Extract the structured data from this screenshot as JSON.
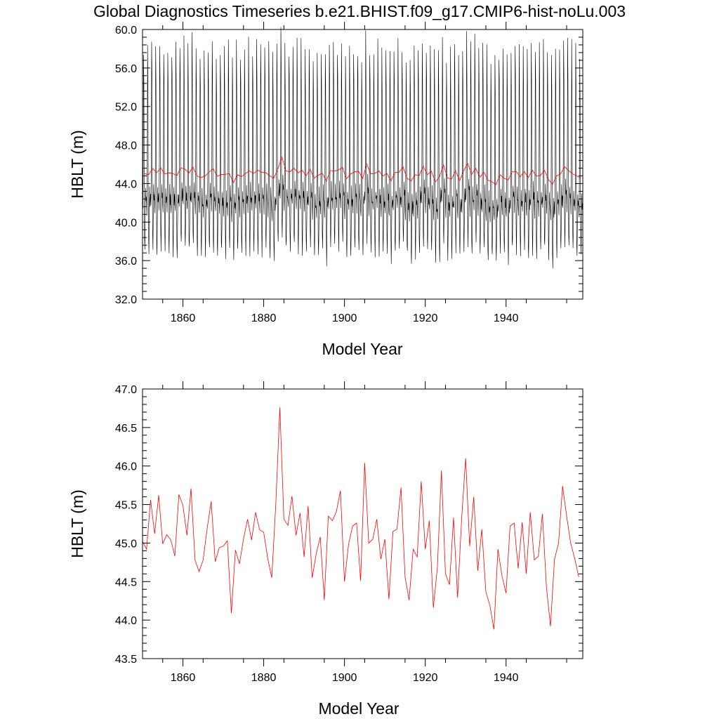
{
  "title": "Global Diagnostics Timeseries b.e21.BHIST.f09_g17.CMIP6-hist-noLu.003",
  "colors": {
    "monthly": "#000000",
    "annual": "#ff0000"
  },
  "chart_data": [
    {
      "type": "line",
      "xlabel": "Model Year",
      "ylabel": "HBLT (m)",
      "xlim": [
        1850,
        1959
      ],
      "ylim": [
        32.0,
        60.0
      ],
      "x_ticks": [
        1860,
        1880,
        1900,
        1920,
        1940
      ],
      "y_ticks": [
        "32.0",
        "36.0",
        "40.0",
        "44.0",
        "48.0",
        "52.0",
        "56.0",
        "60.0"
      ],
      "grid": false,
      "series": [
        {
          "color": "#000000",
          "resolution": "monthly",
          "annual_cycle": {
            "year_start": 1850,
            "year_end": 1959,
            "monthly_shape": [
              42.0,
              41.0,
              45.5,
              58.0,
              54.0,
              43.5,
              38.5,
              36.8,
              40.0,
              43.5,
              42.0,
              42.5
            ]
          }
        },
        {
          "color": "#ff0000",
          "resolution": "annual",
          "x": [
            1850,
            1851,
            1852,
            1853,
            1854,
            1855,
            1856,
            1857,
            1858,
            1859,
            1860,
            1861,
            1862,
            1863,
            1864,
            1865,
            1866,
            1867,
            1868,
            1869,
            1870,
            1871,
            1872,
            1873,
            1874,
            1875,
            1876,
            1877,
            1878,
            1879,
            1880,
            1881,
            1882,
            1883,
            1884,
            1885,
            1886,
            1887,
            1888,
            1889,
            1890,
            1891,
            1892,
            1893,
            1894,
            1895,
            1896,
            1897,
            1898,
            1899,
            1900,
            1901,
            1902,
            1903,
            1904,
            1905,
            1906,
            1907,
            1908,
            1909,
            1910,
            1911,
            1912,
            1913,
            1914,
            1915,
            1916,
            1917,
            1918,
            1919,
            1920,
            1921,
            1922,
            1923,
            1924,
            1925,
            1926,
            1927,
            1928,
            1929,
            1930,
            1931,
            1932,
            1933,
            1934,
            1935,
            1936,
            1937,
            1938,
            1939,
            1940,
            1941,
            1942,
            1943,
            1944,
            1945,
            1946,
            1947,
            1948,
            1949,
            1950,
            1951,
            1952,
            1953,
            1954,
            1955,
            1956,
            1957,
            1958
          ],
          "values": [
            45.02,
            44.92,
            45.56,
            45.12,
            45.62,
            44.99,
            45.11,
            45.04,
            44.83,
            45.63,
            45.49,
            45.1,
            45.71,
            44.78,
            44.63,
            44.78,
            45.19,
            45.54,
            44.76,
            44.94,
            44.96,
            45.03,
            44.09,
            44.91,
            44.73,
            45.05,
            45.31,
            45.04,
            45.4,
            45.17,
            45.14,
            44.8,
            44.55,
            45.51,
            46.76,
            45.31,
            45.23,
            45.61,
            45.1,
            45.39,
            44.82,
            45.48,
            44.55,
            44.86,
            45.08,
            44.26,
            45.35,
            45.29,
            45.41,
            45.68,
            44.5,
            44.98,
            45.22,
            45.26,
            44.51,
            46.04,
            45.0,
            45.05,
            45.31,
            44.79,
            45.05,
            44.27,
            45.15,
            45.18,
            45.72,
            44.56,
            44.26,
            44.92,
            44.82,
            45.8,
            44.92,
            45.29,
            44.16,
            44.68,
            45.94,
            44.6,
            44.46,
            45.33,
            44.29,
            45.31,
            46.1,
            44.96,
            45.6,
            44.64,
            45.18,
            44.37,
            44.19,
            43.88,
            44.92,
            44.57,
            44.35,
            45.22,
            45.26,
            44.67,
            45.27,
            44.6,
            45.4,
            44.78,
            44.83,
            45.38,
            44.43,
            43.92,
            44.79,
            45.0,
            45.74,
            45.35,
            45.0,
            44.8,
            44.56
          ]
        }
      ]
    },
    {
      "type": "line",
      "xlabel": "Model Year",
      "ylabel": "HBLT (m)",
      "xlim": [
        1850,
        1959
      ],
      "ylim": [
        43.5,
        47.0
      ],
      "x_ticks": [
        1860,
        1880,
        1900,
        1920,
        1940
      ],
      "y_ticks": [
        "43.5",
        "44.0",
        "44.5",
        "45.0",
        "45.5",
        "46.0",
        "46.5",
        "47.0"
      ],
      "grid": false,
      "series": [
        {
          "color": "#ff0000",
          "resolution": "annual",
          "same_as": "annual"
        }
      ]
    }
  ]
}
